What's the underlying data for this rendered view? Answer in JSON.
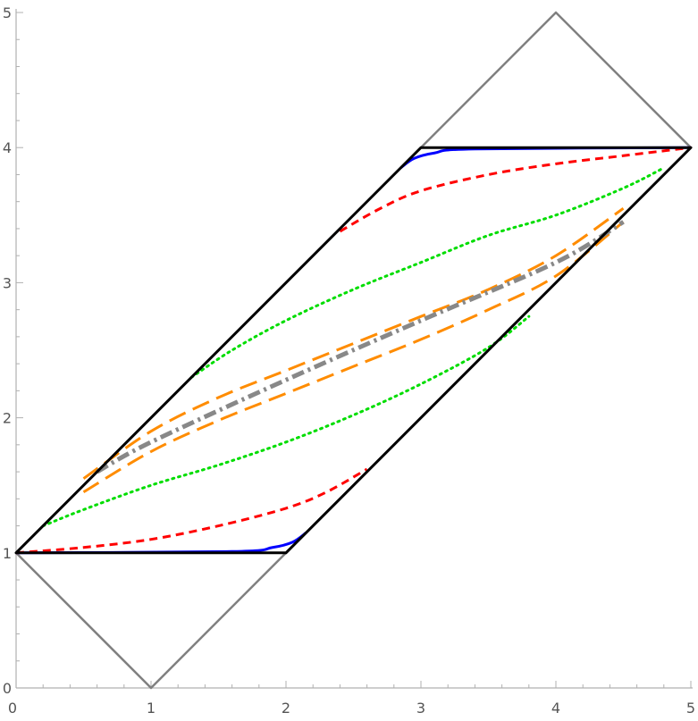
{
  "chart_data": {
    "type": "line",
    "title": "",
    "xlabel": "",
    "ylabel": "",
    "xlim": [
      0,
      5
    ],
    "ylim": [
      0,
      5
    ],
    "grid": false,
    "legend": "none",
    "x_ticks": [
      "0",
      "1",
      "2",
      "3",
      "4",
      "5"
    ],
    "y_ticks": [
      "0",
      "1",
      "2",
      "3",
      "4",
      "5"
    ],
    "series": [
      {
        "color": "#808080",
        "style": "solid",
        "points": [
          [
            0,
            1
          ],
          [
            1,
            0
          ],
          [
            5,
            4
          ],
          [
            4,
            5
          ],
          [
            0,
            1
          ]
        ]
      },
      {
        "color": "#0000ff",
        "style": "solid",
        "points": [
          [
            0,
            1
          ],
          [
            1.6,
            1.01
          ],
          [
            1.9,
            1.04
          ],
          [
            2.05,
            1.08
          ],
          [
            2.15,
            1.15
          ]
        ]
      },
      {
        "color": "#0000ff",
        "style": "solid",
        "points": [
          [
            2.85,
            3.85
          ],
          [
            2.95,
            3.92
          ],
          [
            3.1,
            3.96
          ],
          [
            3.4,
            3.99
          ],
          [
            5,
            4
          ]
        ]
      },
      {
        "color": "#ff0000",
        "style": "dashed",
        "points": [
          [
            0,
            1
          ],
          [
            0.5,
            1.04
          ],
          [
            1,
            1.1
          ],
          [
            1.5,
            1.2
          ],
          [
            2,
            1.33
          ],
          [
            2.3,
            1.45
          ],
          [
            2.6,
            1.62
          ]
        ]
      },
      {
        "color": "#ff0000",
        "style": "dashed",
        "points": [
          [
            2.4,
            3.38
          ],
          [
            2.7,
            3.55
          ],
          [
            3,
            3.68
          ],
          [
            3.5,
            3.8
          ],
          [
            4,
            3.88
          ],
          [
            4.5,
            3.94
          ],
          [
            5,
            4
          ]
        ]
      },
      {
        "color": "#00dd00",
        "style": "dotted",
        "points": [
          [
            0.2,
            1.2
          ],
          [
            0.5,
            1.32
          ],
          [
            1,
            1.5
          ],
          [
            1.5,
            1.65
          ],
          [
            2,
            1.82
          ],
          [
            2.5,
            2.02
          ],
          [
            3,
            2.25
          ],
          [
            3.5,
            2.52
          ],
          [
            3.8,
            2.75
          ]
        ]
      },
      {
        "color": "#00dd00",
        "style": "dotted",
        "points": [
          [
            1.3,
            2.3
          ],
          [
            1.6,
            2.5
          ],
          [
            2,
            2.72
          ],
          [
            2.5,
            2.95
          ],
          [
            3,
            3.15
          ],
          [
            3.5,
            3.35
          ],
          [
            4,
            3.5
          ],
          [
            4.5,
            3.7
          ],
          [
            4.8,
            3.85
          ]
        ]
      },
      {
        "color": "#ff8c00",
        "style": "longdash",
        "points": [
          [
            0.5,
            1.55
          ],
          [
            1,
            1.9
          ],
          [
            1.5,
            2.15
          ],
          [
            2,
            2.35
          ],
          [
            2.5,
            2.55
          ],
          [
            3,
            2.75
          ],
          [
            3.5,
            2.95
          ],
          [
            4,
            3.2
          ],
          [
            4.5,
            3.55
          ]
        ]
      },
      {
        "color": "#ff8c00",
        "style": "longdash",
        "points": [
          [
            0.5,
            1.45
          ],
          [
            1,
            1.75
          ],
          [
            1.5,
            1.98
          ],
          [
            2,
            2.18
          ],
          [
            2.5,
            2.38
          ],
          [
            3,
            2.58
          ],
          [
            3.5,
            2.8
          ],
          [
            4,
            3.05
          ],
          [
            4.5,
            3.45
          ]
        ]
      },
      {
        "color": "#888888",
        "style": "dashdot",
        "points": [
          [
            0.6,
            1.6
          ],
          [
            1,
            1.82
          ],
          [
            2,
            2.28
          ],
          [
            3,
            2.72
          ],
          [
            4,
            3.15
          ],
          [
            4.5,
            3.45
          ]
        ]
      },
      {
        "color": "#000000",
        "style": "solid",
        "points": [
          [
            0,
            1
          ],
          [
            2,
            1
          ],
          [
            5,
            4
          ],
          [
            3,
            4
          ],
          [
            0,
            1
          ]
        ]
      }
    ]
  }
}
